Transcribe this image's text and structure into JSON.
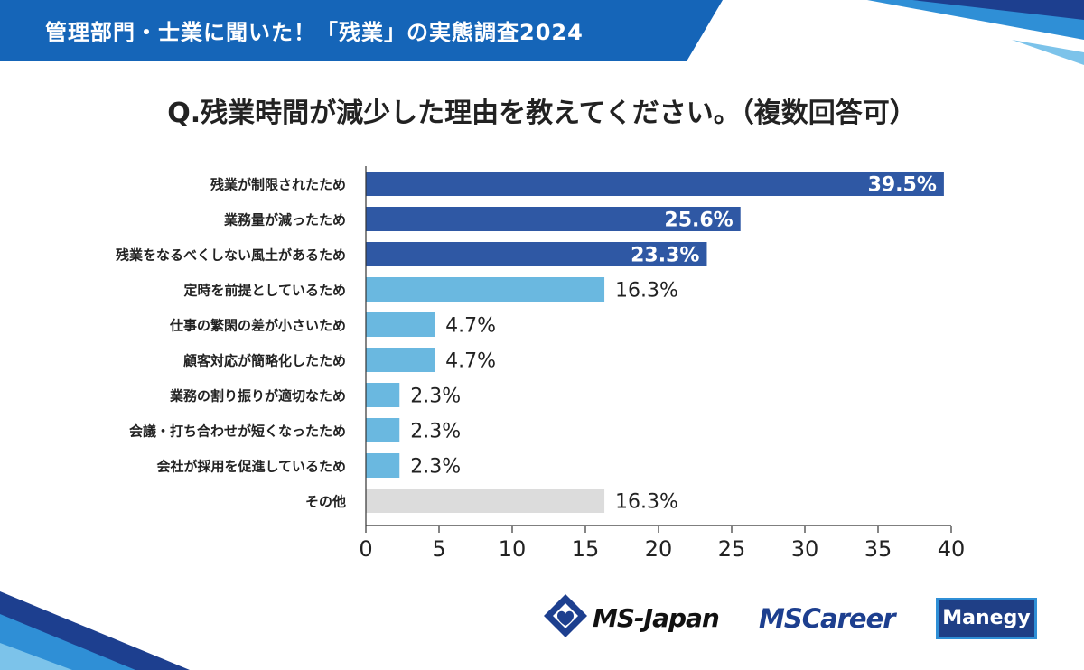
{
  "header": {
    "title": "管理部門・士業に聞いた！「残業」の実態調査2024"
  },
  "question": "Q.残業時間が減少した理由を教えてください。（複数回答可）",
  "colors": {
    "top3": "#2f58a4",
    "mid": "#6ab8e0",
    "other": "#dcdcdc",
    "header_bg": "#1565b8"
  },
  "chart_data": {
    "type": "bar",
    "orientation": "horizontal",
    "title": "Q.残業時間が減少した理由を教えてください。（複数回答可）",
    "categories": [
      "残業が制限されたため",
      "業務量が減ったため",
      "残業をなるべくしない風土があるため",
      "定時を前提としているため",
      "仕事の繁閑の差が小さいため",
      "顧客対応が簡略化したため",
      "業務の割り振りが適切なため",
      "会議・打ち合わせが短くなったため",
      "会社が採用を促進しているため",
      "その他"
    ],
    "values": [
      39.5,
      25.6,
      23.3,
      16.3,
      4.7,
      4.7,
      2.3,
      2.3,
      2.3,
      16.3
    ],
    "labels": [
      "39.5%",
      "25.6%",
      "23.3%",
      "16.3%",
      "4.7%",
      "4.7%",
      "2.3%",
      "2.3%",
      "2.3%",
      "16.3%"
    ],
    "groups": [
      "top3",
      "top3",
      "top3",
      "mid",
      "mid",
      "mid",
      "mid",
      "mid",
      "mid",
      "other"
    ],
    "xlim": [
      0,
      40
    ],
    "xticks": [
      "0",
      "5",
      "10",
      "15",
      "20",
      "25",
      "30",
      "35",
      "40"
    ],
    "xlabel": "",
    "ylabel": ""
  },
  "logos": {
    "ms_japan": "MS-Japan",
    "ms_career": "MSCareer",
    "manegy": "Manegy"
  }
}
